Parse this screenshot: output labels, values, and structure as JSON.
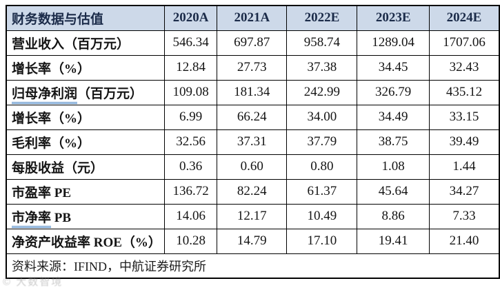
{
  "colors": {
    "header_bg": "#cdd9e9",
    "header_text": "#1b2b49",
    "body_text": "#141414",
    "border": "#000000",
    "underline_blue": "#4a86c4"
  },
  "table": {
    "header": {
      "label": "财务数据与估值",
      "columns": [
        "2020A",
        "2021A",
        "2022E",
        "2023E",
        "2024E"
      ]
    },
    "rows": [
      {
        "label": "营业收入（百万元）",
        "values": [
          "546.34",
          "697.87",
          "958.74",
          "1289.04",
          "1707.06"
        ]
      },
      {
        "label": "增长率（%）",
        "values": [
          "12.84",
          "27.73",
          "37.38",
          "34.45",
          "32.43"
        ]
      },
      {
        "label_main": "归母净利润",
        "label_rest": "（百万元）",
        "values": [
          "109.08",
          "181.34",
          "242.99",
          "326.79",
          "435.12"
        ]
      },
      {
        "label": "增长率（%）",
        "values": [
          "6.99",
          "66.24",
          "34.00",
          "34.49",
          "33.15"
        ]
      },
      {
        "label": "毛利率（%）",
        "values": [
          "32.56",
          "37.31",
          "37.79",
          "38.75",
          "39.49"
        ]
      },
      {
        "label": "每股收益（元）",
        "values": [
          "0.36",
          "0.60",
          "0.80",
          "1.08",
          "1.44"
        ]
      },
      {
        "label": "市盈率 PE",
        "values": [
          "136.72",
          "82.24",
          "61.37",
          "45.64",
          "34.27"
        ]
      },
      {
        "label_main": "市净率",
        "label_rest": " PB",
        "values": [
          "14.06",
          "12.17",
          "10.49",
          "8.86",
          "7.33"
        ]
      },
      {
        "label": "净资产收益率 ROE（%）",
        "values": [
          "10.28",
          "14.79",
          "17.10",
          "19.41",
          "21.40"
        ]
      }
    ],
    "footer": "资料来源：IFIND，中航证券研究所"
  },
  "watermark": {
    "text": "© 大数智境"
  },
  "chart_data": {
    "type": "table",
    "title": "财务数据与估值",
    "columns": [
      "财务数据与估值",
      "2020A",
      "2021A",
      "2022E",
      "2023E",
      "2024E"
    ],
    "rows": [
      [
        "营业收入（百万元）",
        546.34,
        697.87,
        958.74,
        1289.04,
        1707.06
      ],
      [
        "增长率（%）",
        12.84,
        27.73,
        37.38,
        34.45,
        32.43
      ],
      [
        "归母净利润（百万元）",
        109.08,
        181.34,
        242.99,
        326.79,
        435.12
      ],
      [
        "增长率（%）",
        6.99,
        66.24,
        34.0,
        34.49,
        33.15
      ],
      [
        "毛利率（%）",
        32.56,
        37.31,
        37.79,
        38.75,
        39.49
      ],
      [
        "每股收益（元）",
        0.36,
        0.6,
        0.8,
        1.08,
        1.44
      ],
      [
        "市盈率 PE",
        136.72,
        82.24,
        61.37,
        45.64,
        34.27
      ],
      [
        "市净率 PB",
        14.06,
        12.17,
        10.49,
        8.86,
        7.33
      ],
      [
        "净资产收益率 ROE（%）",
        10.28,
        14.79,
        17.1,
        19.41,
        21.4
      ]
    ],
    "source_note": "资料来源：IFIND，中航证券研究所"
  }
}
